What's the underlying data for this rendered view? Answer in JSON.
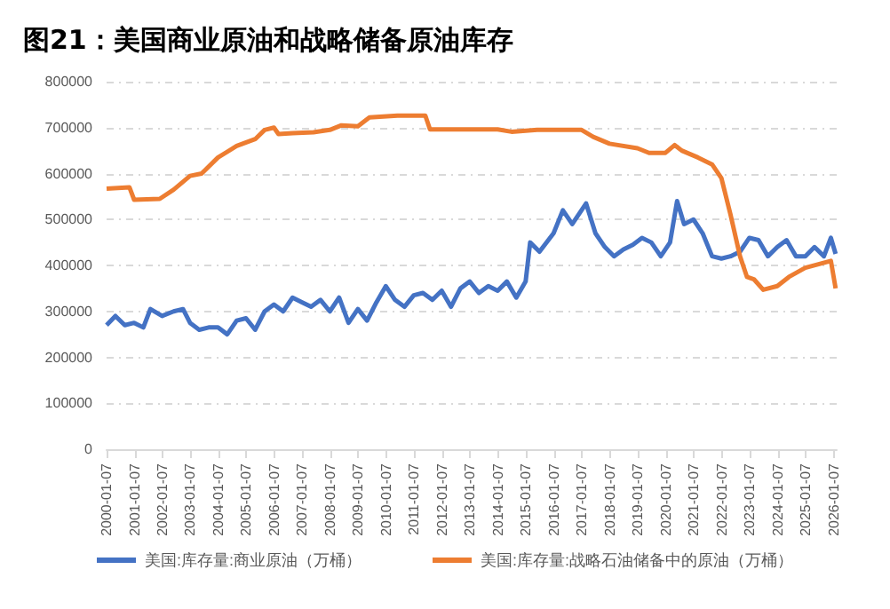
{
  "chart_data": {
    "type": "line",
    "title": "图21：美国商业原油和战略储备原油库存",
    "xlim": [
      "2000-01-07",
      "2026-02-15"
    ],
    "xticks": [
      "2000-01-07",
      "2001-01-07",
      "2002-01-07",
      "2003-01-07",
      "2004-01-07",
      "2005-01-07",
      "2006-01-07",
      "2007-01-07",
      "2008-01-07",
      "2009-01-07",
      "2010-01-07",
      "2011-01-07",
      "2012-01-07",
      "2013-01-07",
      "2014-01-07",
      "2015-01-07",
      "2016-01-07",
      "2017-01-07",
      "2018-01-07",
      "2019-01-07",
      "2020-01-07",
      "2021-01-07",
      "2022-01-07",
      "2023-01-07",
      "2024-01-07",
      "2025-01-07",
      "2026-01-07"
    ],
    "ylim": [
      0,
      800000
    ],
    "yticks": [
      0,
      100000,
      200000,
      300000,
      400000,
      500000,
      600000,
      700000,
      800000
    ],
    "grid": "y",
    "legend": "bottom",
    "line_style": "solid",
    "marker": "none",
    "series": [
      {
        "name": "美国:库存量:商业原油（万桶）",
        "color": "#4472c4",
        "x": [
          "2000-01-07",
          "2000-05",
          "2000-09",
          "2001-01",
          "2001-05",
          "2001-08",
          "2002-01",
          "2002-06",
          "2002-10",
          "2003-01",
          "2003-05",
          "2003-09",
          "2004-01",
          "2004-05",
          "2004-09",
          "2005-01",
          "2005-05",
          "2005-09",
          "2006-01",
          "2006-05",
          "2006-09",
          "2007-01",
          "2007-05",
          "2007-09",
          "2008-01",
          "2008-05",
          "2008-09",
          "2009-01",
          "2009-05",
          "2009-09",
          "2010-01",
          "2010-05",
          "2010-09",
          "2011-01",
          "2011-05",
          "2011-09",
          "2012-01",
          "2012-05",
          "2012-09",
          "2013-01",
          "2013-05",
          "2013-09",
          "2014-01",
          "2014-05",
          "2014-09",
          "2015-01",
          "2015-03",
          "2015-07",
          "2016-01",
          "2016-05",
          "2016-09",
          "2017-03",
          "2017-07",
          "2017-11",
          "2018-03",
          "2018-07",
          "2018-11",
          "2019-03",
          "2019-07",
          "2019-11",
          "2020-03",
          "2020-06",
          "2020-09",
          "2021-01",
          "2021-05",
          "2021-09",
          "2022-01",
          "2022-05",
          "2022-09",
          "2023-01",
          "2023-05",
          "2023-09",
          "2024-01",
          "2024-05",
          "2024-09",
          "2025-01",
          "2025-05",
          "2025-09",
          "2025-12",
          "2026-02"
        ],
        "values": [
          270000,
          290000,
          270000,
          275000,
          265000,
          305000,
          290000,
          300000,
          305000,
          275000,
          260000,
          265000,
          265000,
          250000,
          280000,
          285000,
          260000,
          300000,
          315000,
          300000,
          330000,
          320000,
          310000,
          325000,
          300000,
          330000,
          275000,
          305000,
          280000,
          320000,
          355000,
          325000,
          310000,
          335000,
          340000,
          325000,
          345000,
          310000,
          350000,
          365000,
          340000,
          355000,
          345000,
          365000,
          330000,
          365000,
          450000,
          430000,
          470000,
          520000,
          490000,
          535000,
          470000,
          440000,
          420000,
          435000,
          445000,
          460000,
          450000,
          420000,
          450000,
          540000,
          490000,
          500000,
          470000,
          420000,
          415000,
          420000,
          430000,
          460000,
          455000,
          420000,
          440000,
          455000,
          420000,
          420000,
          440000,
          420000,
          460000,
          425000
        ]
      },
      {
        "name": "美国:库存量:战略石油储备中的原油（万桶）",
        "color": "#ed7d31",
        "x": [
          "2000-01-07",
          "2000-11",
          "2001-01",
          "2001-12",
          "2002-06",
          "2003-01",
          "2003-06",
          "2004-01",
          "2004-09",
          "2005-05",
          "2005-09",
          "2006-01",
          "2006-03",
          "2006-09",
          "2007-06",
          "2008-01",
          "2008-06",
          "2009-01",
          "2009-06",
          "2010-06",
          "2011-06",
          "2011-08",
          "2013-01",
          "2014-01",
          "2014-07",
          "2015-06",
          "2017-01",
          "2017-06",
          "2018-01",
          "2019-01",
          "2019-06",
          "2020-01",
          "2020-05",
          "2020-08",
          "2021-03",
          "2021-09",
          "2022-01",
          "2022-05",
          "2022-09",
          "2022-12",
          "2023-03",
          "2023-07",
          "2024-01",
          "2024-06",
          "2025-01",
          "2025-12",
          "2026-02"
        ],
        "values": [
          567000,
          570000,
          543000,
          545000,
          565000,
          595000,
          600000,
          635000,
          660000,
          675000,
          695000,
          700000,
          686000,
          688000,
          690000,
          695000,
          705000,
          703000,
          722000,
          726000,
          726000,
          696000,
          696000,
          696000,
          691000,
          695000,
          695000,
          680000,
          665000,
          655000,
          645000,
          645000,
          662000,
          650000,
          635000,
          620000,
          590000,
          510000,
          420000,
          375000,
          370000,
          347000,
          355000,
          375000,
          395000,
          410000,
          350000
        ]
      }
    ]
  }
}
